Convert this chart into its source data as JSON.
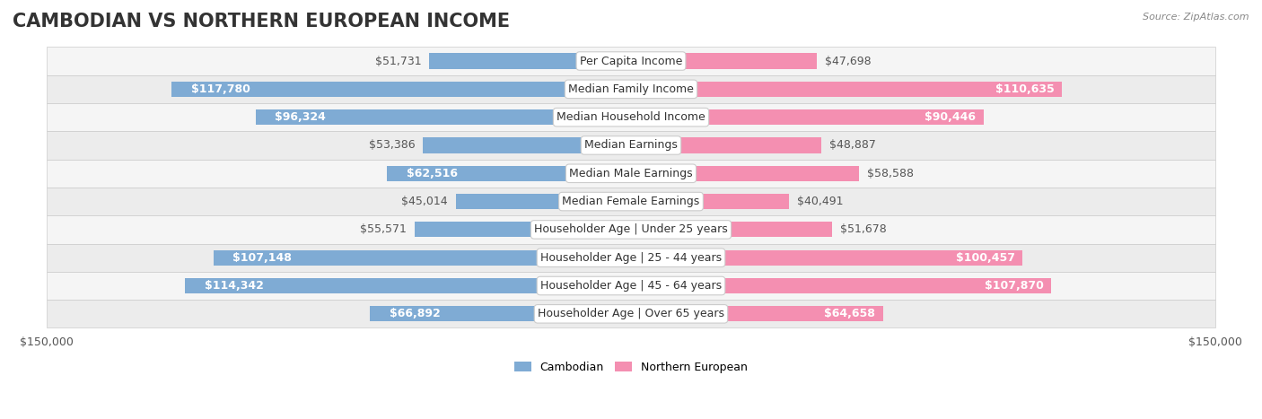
{
  "title": "CAMBODIAN VS NORTHERN EUROPEAN INCOME",
  "source": "Source: ZipAtlas.com",
  "categories": [
    "Per Capita Income",
    "Median Family Income",
    "Median Household Income",
    "Median Earnings",
    "Median Male Earnings",
    "Median Female Earnings",
    "Householder Age | Under 25 years",
    "Householder Age | 25 - 44 years",
    "Householder Age | 45 - 64 years",
    "Householder Age | Over 65 years"
  ],
  "cambodian_values": [
    51731,
    117780,
    96324,
    53386,
    62516,
    45014,
    55571,
    107148,
    114342,
    66892
  ],
  "northern_european_values": [
    47698,
    110635,
    90446,
    48887,
    58588,
    40491,
    51678,
    100457,
    107870,
    64658
  ],
  "cambodian_labels": [
    "$51,731",
    "$117,780",
    "$96,324",
    "$53,386",
    "$62,516",
    "$45,014",
    "$55,571",
    "$107,148",
    "$114,342",
    "$66,892"
  ],
  "northern_european_labels": [
    "$47,698",
    "$110,635",
    "$90,446",
    "$48,887",
    "$58,588",
    "$40,491",
    "$51,678",
    "$100,457",
    "$107,870",
    "$64,658"
  ],
  "cambodian_color": "#7fabd4",
  "cambodian_color_dark": "#5b8fc7",
  "northern_european_color": "#f48fb1",
  "northern_european_color_dark": "#e91e8c",
  "bar_bg_color": "#e8e8e8",
  "row_bg_colors": [
    "#f5f5f5",
    "#ececec"
  ],
  "max_value": 150000,
  "x_tick_labels": [
    "$150,000",
    "$150,000"
  ],
  "legend_cambodian": "Cambodian",
  "legend_northern_european": "Northern European",
  "title_fontsize": 15,
  "label_fontsize": 9,
  "category_fontsize": 9
}
